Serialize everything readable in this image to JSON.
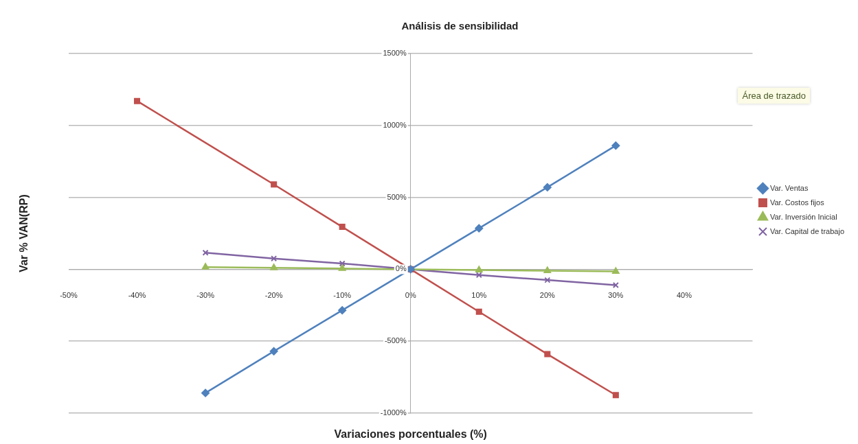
{
  "chart_data": {
    "type": "line",
    "title": "Análisis de sensibilidad",
    "xlabel": "Variaciones porcentuales (%)",
    "ylabel": "Var % VAN(RP)",
    "annotations": [
      "Área de trazado"
    ],
    "series": [
      {
        "name": "Var. Ventas",
        "color": "#4f81bd",
        "marker": "diamond",
        "x": [
          -30,
          -20,
          -10,
          0,
          10,
          20,
          30
        ],
        "values": [
          -860,
          -570,
          -285,
          0,
          285,
          570,
          860
        ]
      },
      {
        "name": "Var. Costos fijos",
        "color": "#c0504d",
        "marker": "square",
        "x": [
          -40,
          -20,
          -10,
          0,
          10,
          20,
          30
        ],
        "values": [
          1170,
          590,
          295,
          0,
          -295,
          -590,
          -875
        ]
      },
      {
        "name": "Var. Inversión Inicial",
        "color": "#9bbb59",
        "marker": "triangle",
        "x": [
          -30,
          -20,
          -10,
          0,
          10,
          20,
          30
        ],
        "values": [
          15,
          10,
          5,
          0,
          -5,
          -10,
          -15
        ]
      },
      {
        "name": "Var. Capital de trabajo",
        "color": "#8064a2",
        "marker": "cross",
        "x": [
          -30,
          -20,
          -10,
          0,
          10,
          20,
          30
        ],
        "values": [
          115,
          75,
          40,
          0,
          -40,
          -75,
          -110
        ]
      }
    ],
    "xlim": [
      -50,
      50
    ],
    "xticks": [
      {
        "value": -50,
        "label": "-50%"
      },
      {
        "value": -40,
        "label": "-40%"
      },
      {
        "value": -30,
        "label": "-30%"
      },
      {
        "value": -20,
        "label": "-20%"
      },
      {
        "value": -10,
        "label": "-10%"
      },
      {
        "value": 0,
        "label": "0%"
      },
      {
        "value": 10,
        "label": "10%"
      },
      {
        "value": 20,
        "label": "20%"
      },
      {
        "value": 30,
        "label": "30%"
      },
      {
        "value": 40,
        "label": "40%"
      }
    ],
    "ylim": [
      -1000,
      1500
    ],
    "yticks": [
      {
        "value": -1000,
        "label": "-1000%"
      },
      {
        "value": -500,
        "label": "-500%"
      },
      {
        "value": 0,
        "label": "0%"
      },
      {
        "value": 500,
        "label": "500%"
      },
      {
        "value": 1000,
        "label": "1000%"
      },
      {
        "value": 1500,
        "label": "1500%"
      }
    ],
    "grid": "y",
    "legend": "right",
    "line_style": "solid"
  }
}
